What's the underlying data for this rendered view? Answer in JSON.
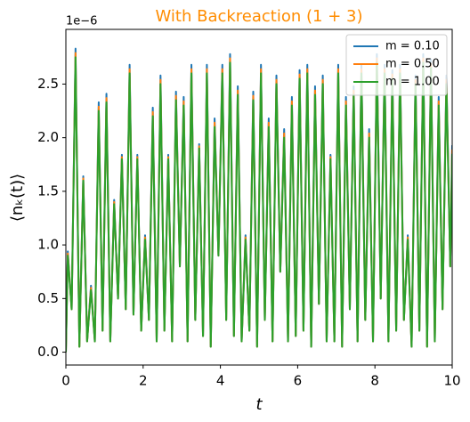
{
  "chart_data": {
    "type": "line",
    "title": "With Backreaction (1 + 3)",
    "title_color": "#ff8c00",
    "xlabel": "t",
    "ylabel": "⟨nₖ(t)⟩",
    "y_offset_label": "1e−6",
    "xlim": [
      0,
      10
    ],
    "ylim": [
      -0.12,
      3.01
    ],
    "xticks": [
      0,
      2,
      4,
      6,
      8,
      10
    ],
    "yticks": [
      {
        "value": 0,
        "label": "0.0"
      },
      0.5,
      {
        "value": 1,
        "label": "1.0"
      },
      1.5,
      {
        "value": 2,
        "label": "2.0"
      },
      2.5
    ],
    "legend": "upper right",
    "x": [
      0,
      0.05,
      0.15,
      0.25,
      0.35,
      0.45,
      0.55,
      0.65,
      0.75,
      0.85,
      0.95,
      1.05,
      1.15,
      1.25,
      1.35,
      1.45,
      1.55,
      1.65,
      1.75,
      1.85,
      1.95,
      2.05,
      2.15,
      2.25,
      2.35,
      2.45,
      2.55,
      2.65,
      2.75,
      2.85,
      2.95,
      3.05,
      3.15,
      3.25,
      3.35,
      3.45,
      3.55,
      3.65,
      3.75,
      3.85,
      3.95,
      4.05,
      4.15,
      4.25,
      4.35,
      4.45,
      4.55,
      4.65,
      4.75,
      4.85,
      4.95,
      5.05,
      5.15,
      5.25,
      5.35,
      5.45,
      5.55,
      5.65,
      5.75,
      5.85,
      5.95,
      6.05,
      6.15,
      6.25,
      6.35,
      6.45,
      6.55,
      6.65,
      6.75,
      6.85,
      6.95,
      7.05,
      7.15,
      7.25,
      7.35,
      7.45,
      7.55,
      7.65,
      7.75,
      7.85,
      7.95,
      8.05,
      8.15,
      8.25,
      8.35,
      8.45,
      8.55,
      8.65,
      8.75,
      8.85,
      8.95,
      9.05,
      9.15,
      9.25,
      9.35,
      9.45,
      9.55,
      9.65,
      9.75,
      9.85,
      9.95,
      10
    ],
    "series": [
      {
        "name": "m = 0.10",
        "color": "#1f77b4",
        "values": [
          0,
          0.94,
          0.4,
          2.83,
          0.05,
          1.64,
          0.1,
          0.62,
          0.1,
          2.33,
          0.2,
          2.41,
          0.1,
          1.42,
          0.5,
          1.84,
          0.4,
          2.68,
          0.35,
          1.84,
          0.2,
          1.09,
          0.3,
          2.28,
          0.1,
          2.58,
          0.2,
          1.84,
          0.1,
          2.43,
          0.8,
          2.38,
          0.1,
          2.68,
          0.3,
          1.94,
          0.15,
          2.68,
          0.05,
          2.18,
          0.9,
          2.68,
          0.3,
          2.78,
          0.15,
          2.48,
          0.1,
          1.09,
          0.2,
          2.43,
          0.05,
          2.68,
          0.3,
          2.18,
          0.1,
          2.58,
          0.75,
          2.08,
          0.1,
          2.38,
          0.15,
          2.63,
          0.2,
          2.68,
          0.05,
          2.48,
          0.45,
          2.58,
          0.1,
          1.84,
          0.1,
          2.68,
          0.05,
          2.38,
          0.4,
          2.48,
          0.1,
          2.68,
          0.3,
          2.08,
          0.1,
          2.78,
          0.5,
          2.68,
          0.1,
          2.63,
          0.2,
          2.68,
          0.3,
          1.09,
          0.05,
          2.58,
          0.2,
          2.78,
          0.05,
          2.73,
          0.1,
          2.38,
          0.4,
          2.58,
          0.8,
          1.93
        ]
      },
      {
        "name": "m = 0.50",
        "color": "#ff7f0e",
        "values": [
          0,
          0.92,
          0.4,
          2.79,
          0.05,
          1.62,
          0.1,
          0.6,
          0.1,
          2.29,
          0.2,
          2.37,
          0.1,
          1.4,
          0.5,
          1.82,
          0.4,
          2.64,
          0.35,
          1.82,
          0.2,
          1.07,
          0.3,
          2.24,
          0.1,
          2.54,
          0.2,
          1.82,
          0.1,
          2.39,
          0.8,
          2.34,
          0.1,
          2.64,
          0.3,
          1.92,
          0.15,
          2.64,
          0.05,
          2.14,
          0.9,
          2.64,
          0.3,
          2.74,
          0.15,
          2.44,
          0.1,
          1.07,
          0.2,
          2.39,
          0.05,
          2.64,
          0.3,
          2.14,
          0.1,
          2.54,
          0.75,
          2.04,
          0.1,
          2.34,
          0.15,
          2.59,
          0.2,
          2.64,
          0.05,
          2.44,
          0.45,
          2.54,
          0.1,
          1.82,
          0.1,
          2.64,
          0.05,
          2.34,
          0.4,
          2.44,
          0.1,
          2.64,
          0.3,
          2.04,
          0.1,
          2.74,
          0.5,
          2.64,
          0.1,
          2.59,
          0.2,
          2.64,
          0.3,
          1.07,
          0.05,
          2.54,
          0.2,
          2.74,
          0.05,
          2.69,
          0.1,
          2.34,
          0.4,
          2.54,
          0.8,
          1.89
        ]
      },
      {
        "name": "m = 1.00",
        "color": "#2ca02c",
        "values": [
          0,
          0.9,
          0.4,
          2.75,
          0.05,
          1.6,
          0.1,
          0.58,
          0.1,
          2.25,
          0.2,
          2.33,
          0.1,
          1.38,
          0.5,
          1.8,
          0.4,
          2.6,
          0.35,
          1.8,
          0.2,
          1.05,
          0.3,
          2.2,
          0.1,
          2.5,
          0.2,
          1.8,
          0.1,
          2.35,
          0.8,
          2.3,
          0.1,
          2.6,
          0.3,
          1.9,
          0.15,
          2.6,
          0.05,
          2.1,
          0.9,
          2.6,
          0.3,
          2.7,
          0.15,
          2.4,
          0.1,
          1.05,
          0.2,
          2.35,
          0.05,
          2.6,
          0.3,
          2.1,
          0.1,
          2.5,
          0.75,
          2.0,
          0.1,
          2.3,
          0.15,
          2.55,
          0.2,
          2.6,
          0.05,
          2.4,
          0.45,
          2.5,
          0.1,
          1.8,
          0.1,
          2.6,
          0.05,
          2.3,
          0.4,
          2.4,
          0.1,
          2.6,
          0.3,
          2.0,
          0.1,
          2.7,
          0.5,
          2.6,
          0.1,
          2.55,
          0.2,
          2.6,
          0.3,
          1.05,
          0.05,
          2.5,
          0.2,
          2.7,
          0.05,
          2.65,
          0.1,
          2.3,
          0.4,
          2.5,
          0.8,
          1.85
        ]
      }
    ]
  }
}
